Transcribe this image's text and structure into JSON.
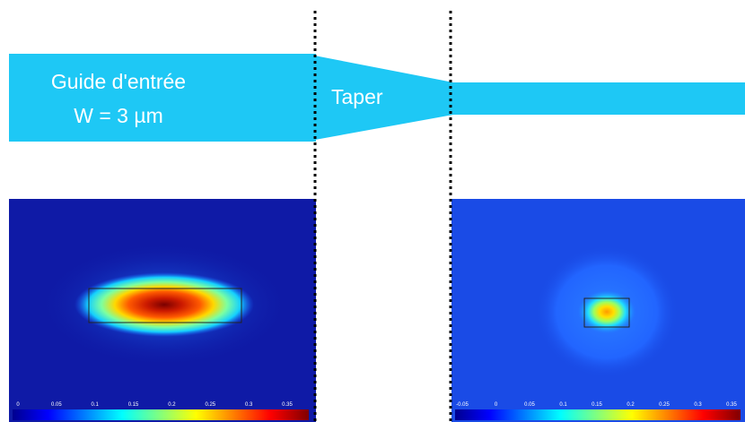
{
  "labels": {
    "input_guide_line1": "Guide d'entrée",
    "input_guide_line2": "W = 3 µm",
    "taper": "Taper"
  },
  "colors": {
    "waveguide": "#1ec8f5",
    "field_background_left": "#0f1aa6",
    "field_background_right": "#1a4be6",
    "divider": "#000000"
  },
  "colorbar_left": {
    "ticks": [
      "0",
      "0.05",
      "0.1",
      "0.15",
      "0.2",
      "0.25",
      "0.3",
      "0.35"
    ]
  },
  "colorbar_right": {
    "ticks": [
      "-0.05",
      "0",
      "0.05",
      "0.1",
      "0.15",
      "0.2",
      "0.25",
      "0.3",
      "0.35"
    ]
  }
}
